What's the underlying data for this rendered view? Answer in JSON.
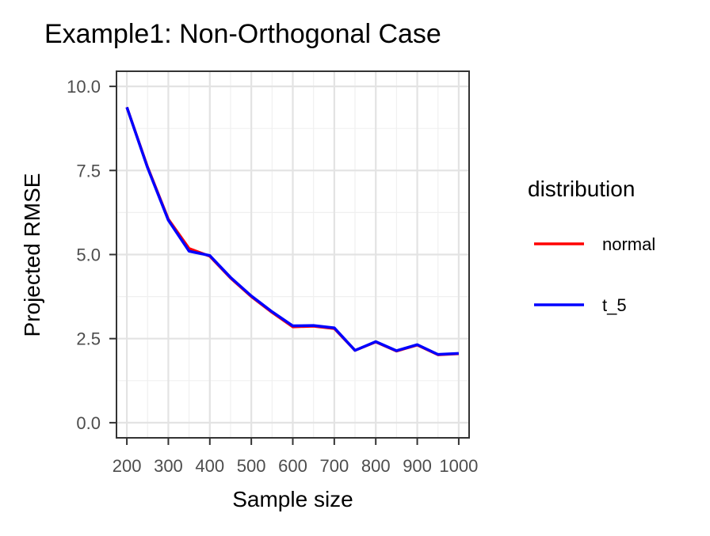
{
  "chart_data": {
    "type": "line",
    "title": "Example1: Non-Orthogonal Case",
    "xlabel": "Sample size",
    "ylabel": "Projected RMSE",
    "xlim": [
      175,
      1025
    ],
    "ylim": [
      -0.45,
      10.45
    ],
    "x_ticks": [
      200,
      300,
      400,
      500,
      600,
      700,
      800,
      900,
      1000
    ],
    "x_tick_labels": [
      "200",
      "300",
      "400",
      "500",
      "600",
      "700",
      "800",
      "900",
      "1000"
    ],
    "x_minor_ticks": [
      250,
      350,
      450,
      550,
      650,
      750,
      850,
      950
    ],
    "y_ticks": [
      0,
      2.5,
      5,
      7.5,
      10
    ],
    "y_tick_labels": [
      "0.0",
      "2.5",
      "5.0",
      "7.5",
      "10.0"
    ],
    "y_minor_ticks": [
      1.25,
      3.75,
      6.25,
      8.75
    ],
    "grid": true,
    "legend": {
      "title": "distribution",
      "position": "right"
    },
    "x": [
      200,
      250,
      300,
      350,
      400,
      450,
      500,
      550,
      600,
      650,
      700,
      750,
      800,
      850,
      900,
      950,
      1000
    ],
    "series": [
      {
        "name": "normal",
        "color": "#ff0000",
        "values": [
          9.38,
          7.6,
          6.05,
          5.18,
          4.95,
          4.3,
          3.75,
          3.28,
          2.85,
          2.87,
          2.8,
          2.15,
          2.4,
          2.13,
          2.31,
          2.02,
          2.05
        ]
      },
      {
        "name": "t_5",
        "color": "#0000ff",
        "values": [
          9.38,
          7.58,
          6.02,
          5.1,
          4.97,
          4.32,
          3.77,
          3.3,
          2.88,
          2.89,
          2.82,
          2.15,
          2.41,
          2.14,
          2.32,
          2.03,
          2.06
        ]
      }
    ]
  }
}
